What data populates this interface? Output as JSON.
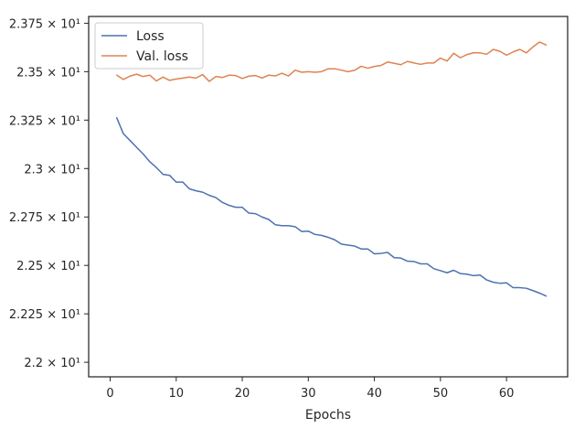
{
  "chart_data": {
    "type": "line",
    "title": "",
    "xlabel": "Epochs",
    "ylabel": "",
    "xlim": [
      -3.25,
      69.25
    ],
    "ylim": [
      21.925,
      23.785
    ],
    "grid": false,
    "legend_position": "top-left",
    "x_ticks": [
      0,
      10,
      20,
      30,
      40,
      50,
      60
    ],
    "x_tick_labels": [
      "0",
      "10",
      "20",
      "30",
      "40",
      "50",
      "60"
    ],
    "y_ticks": [
      22.0,
      22.25,
      22.5,
      22.75,
      23.0,
      23.25,
      23.5,
      23.75
    ],
    "y_tick_labels": [
      "2.2 × 10¹",
      "2.225 × 10¹",
      "2.25 × 10¹",
      "2.275 × 10¹",
      "2.3 × 10¹",
      "2.325 × 10¹",
      "2.35 × 10¹",
      "2.375 × 10¹"
    ],
    "x": [
      1,
      2,
      3,
      4,
      5,
      6,
      7,
      8,
      9,
      10,
      11,
      12,
      13,
      14,
      15,
      16,
      17,
      18,
      19,
      20,
      21,
      22,
      23,
      24,
      25,
      26,
      27,
      28,
      29,
      30,
      31,
      32,
      33,
      34,
      35,
      36,
      37,
      38,
      39,
      40,
      41,
      42,
      43,
      44,
      45,
      46,
      47,
      48,
      49,
      50,
      51,
      52,
      53,
      54,
      55,
      56,
      57,
      58,
      59,
      60,
      61,
      62,
      63,
      64,
      65,
      66
    ],
    "series": [
      {
        "name": "Loss",
        "color": "#4c72b0",
        "values": [
          23.262,
          23.18,
          23.145,
          23.11,
          23.075,
          23.035,
          23.005,
          22.97,
          22.965,
          22.93,
          22.93,
          22.895,
          22.885,
          22.878,
          22.862,
          22.85,
          22.825,
          22.81,
          22.8,
          22.8,
          22.77,
          22.767,
          22.75,
          22.737,
          22.71,
          22.705,
          22.705,
          22.7,
          22.675,
          22.677,
          22.66,
          22.655,
          22.645,
          22.632,
          22.61,
          22.605,
          22.6,
          22.585,
          22.585,
          22.56,
          22.562,
          22.567,
          22.54,
          22.538,
          22.522,
          22.52,
          22.508,
          22.508,
          22.483,
          22.473,
          22.462,
          22.475,
          22.458,
          22.455,
          22.447,
          22.45,
          22.425,
          22.413,
          22.408,
          22.41,
          22.385,
          22.385,
          22.382,
          22.37,
          22.357,
          22.342
        ]
      },
      {
        "name": "Val. loss",
        "color": "#dd8452",
        "values": [
          23.482,
          23.46,
          23.477,
          23.487,
          23.475,
          23.482,
          23.452,
          23.472,
          23.455,
          23.462,
          23.467,
          23.472,
          23.467,
          23.485,
          23.45,
          23.475,
          23.47,
          23.482,
          23.48,
          23.465,
          23.477,
          23.48,
          23.467,
          23.482,
          23.478,
          23.492,
          23.478,
          23.508,
          23.497,
          23.5,
          23.497,
          23.5,
          23.515,
          23.515,
          23.508,
          23.5,
          23.507,
          23.528,
          23.518,
          23.527,
          23.532,
          23.55,
          23.543,
          23.536,
          23.553,
          23.545,
          23.538,
          23.545,
          23.545,
          23.57,
          23.555,
          23.595,
          23.572,
          23.588,
          23.598,
          23.597,
          23.59,
          23.615,
          23.605,
          23.585,
          23.602,
          23.615,
          23.597,
          23.628,
          23.653,
          23.638
        ]
      }
    ]
  }
}
